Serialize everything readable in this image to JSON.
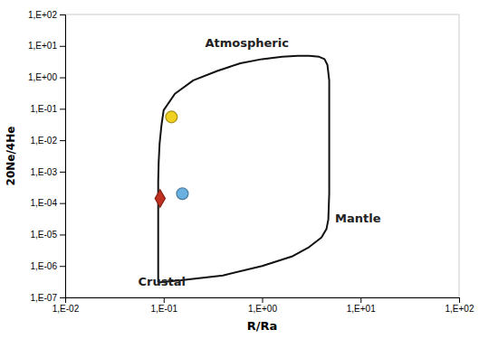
{
  "chart_data": {
    "type": "scatter",
    "xlabel": "R/Ra",
    "ylabel": "20Ne/4He",
    "log": true,
    "grid": false,
    "xlim": [
      0.01,
      100
    ],
    "ylim": [
      1e-07,
      100
    ],
    "xticks": [
      {
        "value": 0.01,
        "label": "1,E-02"
      },
      {
        "value": 0.1,
        "label": "1,E-01"
      },
      {
        "value": 1,
        "label": "1,E+00"
      },
      {
        "value": 10,
        "label": "1,E+01"
      },
      {
        "value": 100,
        "label": "1,E+02"
      }
    ],
    "yticks": [
      {
        "value": 1e-07,
        "label": "1,E-07"
      },
      {
        "value": 1e-06,
        "label": "1,E-06"
      },
      {
        "value": 1e-05,
        "label": "1,E-05"
      },
      {
        "value": 0.0001,
        "label": "1,E-04"
      },
      {
        "value": 0.001,
        "label": "1,E-03"
      },
      {
        "value": 0.01,
        "label": "1,E-02"
      },
      {
        "value": 0.1,
        "label": "1,E-01"
      },
      {
        "value": 1,
        "label": "1,E+00"
      },
      {
        "value": 10,
        "label": "1,E+01"
      },
      {
        "value": 100,
        "label": "1,E+02"
      }
    ],
    "series": [
      {
        "type": "line",
        "color": "#111111",
        "x": [
          0.088,
          0.088,
          0.088,
          0.088,
          0.088,
          0.089,
          0.091,
          0.095,
          0.1,
          0.13,
          0.2,
          0.35,
          0.6,
          1.0,
          1.6,
          2.3,
          3.0,
          3.8,
          4.3,
          4.6,
          4.8,
          4.8,
          4.7,
          4.5,
          4.0,
          3.0,
          2.0,
          1.0,
          0.4,
          0.15,
          0.088
        ],
        "values": [
          3e-07,
          8e-07,
          5e-06,
          5e-05,
          0.0005,
          0.002,
          0.008,
          0.03,
          0.09,
          0.3,
          0.8,
          1.6,
          2.8,
          3.8,
          4.5,
          4.8,
          4.8,
          4.5,
          3.8,
          2.5,
          0.8,
          0.0002,
          3e-05,
          1.5e-05,
          8e-06,
          4e-06,
          2e-06,
          1e-06,
          5e-07,
          3.5e-07,
          3e-07
        ]
      },
      {
        "type": "scatter",
        "color": "#f0d020",
        "marker": "circle",
        "x": [
          0.12
        ],
        "values": [
          0.055
        ]
      },
      {
        "type": "scatter",
        "color": "#6ab0e0",
        "marker": "circle",
        "x": [
          0.155
        ],
        "values": [
          0.0002
        ]
      },
      {
        "type": "scatter",
        "color": "#c03020",
        "marker": "diamond",
        "x": [
          0.092
        ],
        "values": [
          0.00014
        ]
      }
    ],
    "annotations": [
      {
        "text": "Atmospheric",
        "x": 0.7,
        "y": 12.0
      },
      {
        "text": "Mantle",
        "x": 5.5,
        "y": 3e-05
      },
      {
        "text": "Crustal",
        "x": 0.055,
        "y": 3e-07
      }
    ]
  }
}
